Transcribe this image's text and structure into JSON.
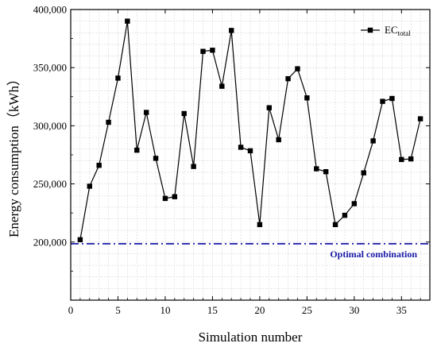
{
  "chart_data": {
    "type": "line",
    "xlabel": "Simulation number",
    "ylabel": "Energy consumption（kWh）",
    "xlim": [
      0,
      38
    ],
    "ylim": [
      150000,
      400000
    ],
    "xticks": [
      0,
      5,
      10,
      15,
      20,
      25,
      30,
      35
    ],
    "xtick_labels": [
      "0",
      "5",
      "10",
      "15",
      "20",
      "25",
      "30",
      "35"
    ],
    "yticks": [
      150000,
      200000,
      250000,
      300000,
      350000,
      400000
    ],
    "ytick_labels": [
      "",
      "200,000",
      "250,000",
      "300,000",
      "350,000",
      "400,000"
    ],
    "grid": true,
    "legend": {
      "position": "top-right",
      "label_main": "EC",
      "label_sub": "total"
    },
    "series": [
      {
        "name": "EC total",
        "color": "#000000",
        "marker": "square",
        "x": [
          1,
          2,
          3,
          4,
          5,
          6,
          7,
          8,
          9,
          10,
          11,
          12,
          13,
          14,
          15,
          16,
          17,
          18,
          19,
          20,
          21,
          22,
          23,
          24,
          25,
          26,
          27,
          28,
          29,
          30,
          31,
          32,
          33,
          34,
          35,
          36,
          37
        ],
        "values": [
          202000,
          248000,
          266000,
          303000,
          341000,
          390000,
          279000,
          311500,
          272000,
          237500,
          239000,
          310500,
          265000,
          364000,
          365000,
          334000,
          382000,
          281500,
          278500,
          215000,
          315500,
          288000,
          340500,
          349000,
          324000,
          263000,
          260500,
          215000,
          223000,
          233000,
          259500,
          287000,
          321000,
          323500,
          271000,
          271500,
          306000
        ]
      }
    ],
    "reference_line": {
      "y": 198500,
      "color": "#1a1aa8",
      "style": "dash-dot",
      "label": "Optimal combination"
    }
  }
}
